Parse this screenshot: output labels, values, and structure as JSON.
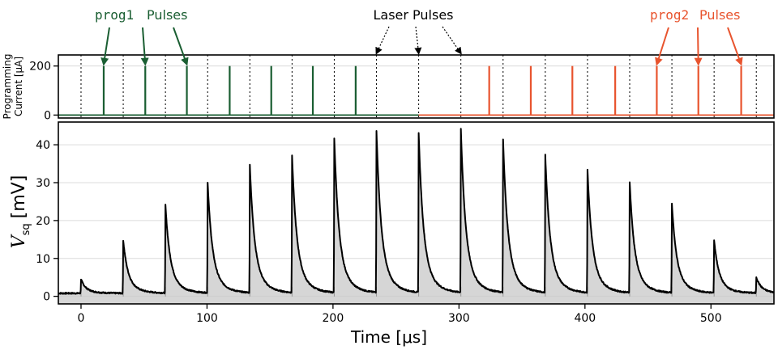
{
  "chart_data": [
    {
      "type": "line",
      "panel": "top",
      "ylabel_line1": "Programming",
      "ylabel_line2": "Current [μA]",
      "yticks": [
        "200",
        "0"
      ],
      "ytick_values": [
        200,
        0
      ],
      "ylim": [
        -12,
        245
      ],
      "xlim": [
        -18,
        550
      ],
      "grid": "horizontal",
      "series": [
        {
          "name": "prog1",
          "color": "#1a5e32",
          "baseline": 0,
          "pulse_amplitude": 200,
          "pulse_times": [
            18,
            51,
            84,
            118,
            151,
            184,
            218
          ],
          "span": [
            -18,
            268
          ]
        },
        {
          "name": "prog2",
          "color": "#e8542e",
          "baseline": 0,
          "pulse_amplitude": 200,
          "pulse_times": [
            324,
            357,
            390,
            424,
            457,
            490,
            524
          ],
          "span": [
            268,
            550
          ]
        }
      ],
      "laser_pulse_times": [
        0,
        33.5,
        67,
        100.5,
        134,
        167.5,
        201,
        234.5,
        268,
        301.5,
        335,
        368.5,
        402,
        435.5,
        469,
        502.5,
        536
      ],
      "annotations": {
        "prog1_code": "prog1",
        "prog1_word": "Pulses",
        "laser": "Laser Pulses",
        "prog2_code": "prog2",
        "prog2_word": "Pulses",
        "prog1_arrow_targets": [
          18,
          51,
          84
        ],
        "laser_arrow_targets": [
          234.5,
          268,
          301.5
        ],
        "prog2_arrow_targets": [
          457,
          490,
          524
        ]
      }
    },
    {
      "type": "area",
      "panel": "bottom",
      "xlabel": "Time [μs]",
      "ylabel_main": "V",
      "ylabel_sub": "sq",
      "ylabel_unit": "[mV]",
      "xlim": [
        -18,
        550
      ],
      "ylim": [
        -2,
        46
      ],
      "xticks": [
        "0",
        "100",
        "200",
        "300",
        "400",
        "500"
      ],
      "xtick_values": [
        0,
        100,
        200,
        300,
        400,
        500
      ],
      "yticks": [
        "0",
        "10",
        "20",
        "30",
        "40"
      ],
      "ytick_values": [
        0,
        10,
        20,
        30,
        40
      ],
      "grid": "horizontal",
      "baseline_mV": 0.8,
      "decay_tau_us": 3.5,
      "pulse_times": [
        0,
        33.5,
        67,
        100.5,
        134,
        167.5,
        201,
        234.5,
        268,
        301.5,
        335,
        368.5,
        402,
        435.5,
        469,
        502.5,
        536
      ],
      "peak_values": [
        4.5,
        14.8,
        24,
        30,
        34.5,
        37,
        41.5,
        43.5,
        43,
        44,
        41,
        37,
        33.2,
        30,
        24.3,
        14.8,
        5
      ],
      "line_color": "#000000",
      "fill_color": "#bdbdbd"
    }
  ]
}
